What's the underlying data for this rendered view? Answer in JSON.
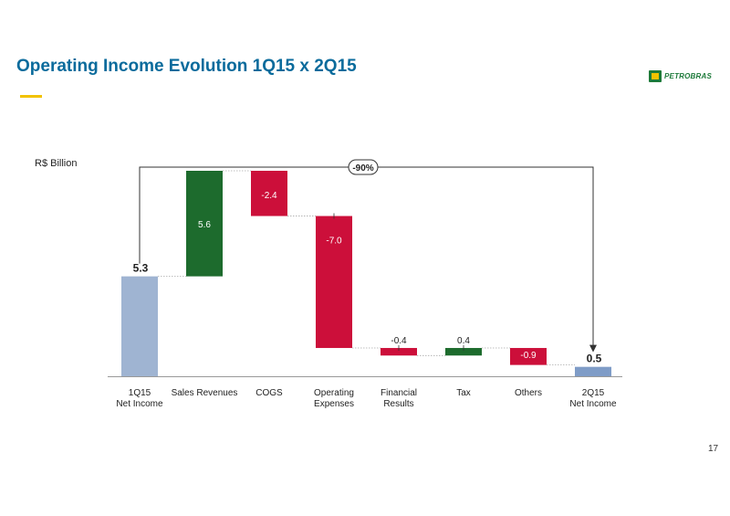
{
  "slide": {
    "title": "Operating Income Evolution 1Q15 x 2Q15",
    "logo_text": "PETROBRAS",
    "page_number": "17"
  },
  "colors": {
    "title": "#0a6b9c",
    "accent_bar": "#f2c200",
    "total_bar": "#9fb4d2",
    "end_bar": "#7f9cc7",
    "increase": "#1d6b2d",
    "decrease": "#cc0f3a",
    "brand_green": "#1d7a3a"
  },
  "chart_data": {
    "type": "waterfall",
    "unit": "R$ Billion",
    "categories": [
      "1Q15\nNet Income",
      "Sales Revenues",
      "COGS",
      "Operating\nExpenses",
      "Financial\nResults",
      "Tax",
      "Others",
      "2Q15\nNet Income"
    ],
    "steps": [
      {
        "label": "1Q15\nNet Income",
        "kind": "total",
        "value": 5.3,
        "display": "5.3"
      },
      {
        "label": "Sales Revenues",
        "kind": "increase",
        "value": 5.6,
        "display": "5.6"
      },
      {
        "label": "COGS",
        "kind": "decrease",
        "value": -2.4,
        "display": "-2.4"
      },
      {
        "label": "Operating\nExpenses",
        "kind": "decrease",
        "value": -7.0,
        "display": "-7.0"
      },
      {
        "label": "Financial\nResults",
        "kind": "decrease",
        "value": -0.4,
        "display": "-0.4"
      },
      {
        "label": "Tax",
        "kind": "increase",
        "value": 0.4,
        "display": "0.4"
      },
      {
        "label": "Others",
        "kind": "decrease",
        "value": -0.9,
        "display": "-0.9"
      },
      {
        "label": "2Q15\nNet Income",
        "kind": "total",
        "value": 0.5,
        "display": "0.5"
      }
    ],
    "change_annotation": "-90%",
    "ylim": [
      0,
      11
    ]
  }
}
